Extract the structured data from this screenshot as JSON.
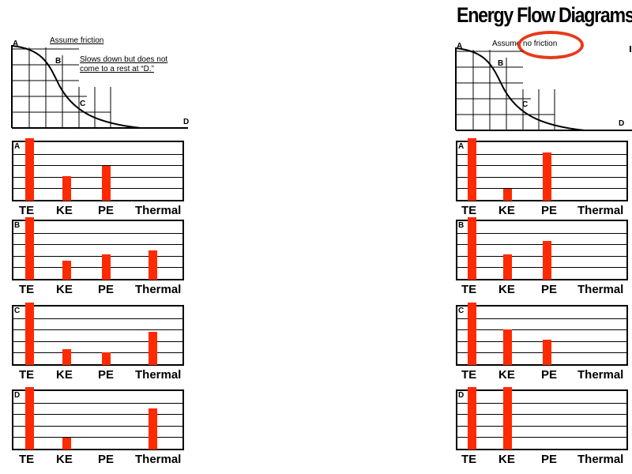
{
  "title": "Energy Flow Diagrams",
  "left": {
    "assumption": "Assume friction",
    "note_line1": "Slows down but does not",
    "note_line2": "come to a rest at “D.”",
    "points": [
      "A",
      "B",
      "C",
      "D"
    ],
    "charts": [
      {
        "label": "A",
        "values": {
          "TE": 1.0,
          "KE": 0.39,
          "PE": 0.56,
          "Thermal": 0
        }
      },
      {
        "label": "B",
        "values": {
          "TE": 1.0,
          "KE": 0.3,
          "PE": 0.4,
          "Thermal": 0.47
        }
      },
      {
        "label": "C",
        "values": {
          "TE": 1.0,
          "KE": 0.25,
          "PE": 0.2,
          "Thermal": 0.53
        }
      },
      {
        "label": "D",
        "values": {
          "TE": 1.0,
          "KE": 0.19,
          "PE": 0,
          "Thermal": 0.66
        }
      }
    ]
  },
  "right": {
    "assumption_prefix": "Assume ",
    "assumption_circled": "no friction",
    "points": [
      "A",
      "B",
      "C",
      "D"
    ],
    "charts": [
      {
        "label": "A",
        "values": {
          "TE": 1.0,
          "KE": 0.19,
          "PE": 0.77,
          "Thermal": 0
        }
      },
      {
        "label": "B",
        "values": {
          "TE": 1.0,
          "KE": 0.4,
          "PE": 0.62,
          "Thermal": 0
        }
      },
      {
        "label": "C",
        "values": {
          "TE": 1.0,
          "KE": 0.57,
          "PE": 0.4,
          "Thermal": 0
        }
      },
      {
        "label": "D",
        "values": {
          "TE": 1.0,
          "KE": 1.0,
          "PE": 0,
          "Thermal": 0
        }
      }
    ]
  },
  "categories": [
    "TE",
    "KE",
    "PE",
    "Thermal"
  ],
  "colors": {
    "bar": "#ff2a00",
    "circle": "#e8391c",
    "line": "#000000"
  }
}
